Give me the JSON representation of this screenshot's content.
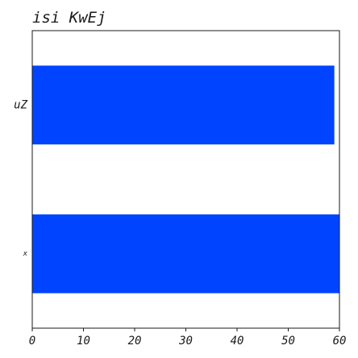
{
  "chart_data": {
    "type": "bar",
    "orientation": "horizontal",
    "title": "isi KwEj",
    "xlabel": "",
    "ylabel": "",
    "categories": [
      "uZ",
      "x"
    ],
    "values": [
      59,
      60
    ],
    "xlim": [
      0,
      60
    ],
    "xticks": [
      0,
      10,
      20,
      30,
      40,
      50,
      60
    ],
    "grid": false,
    "legend": "none",
    "bar_color": "#0044ff"
  }
}
